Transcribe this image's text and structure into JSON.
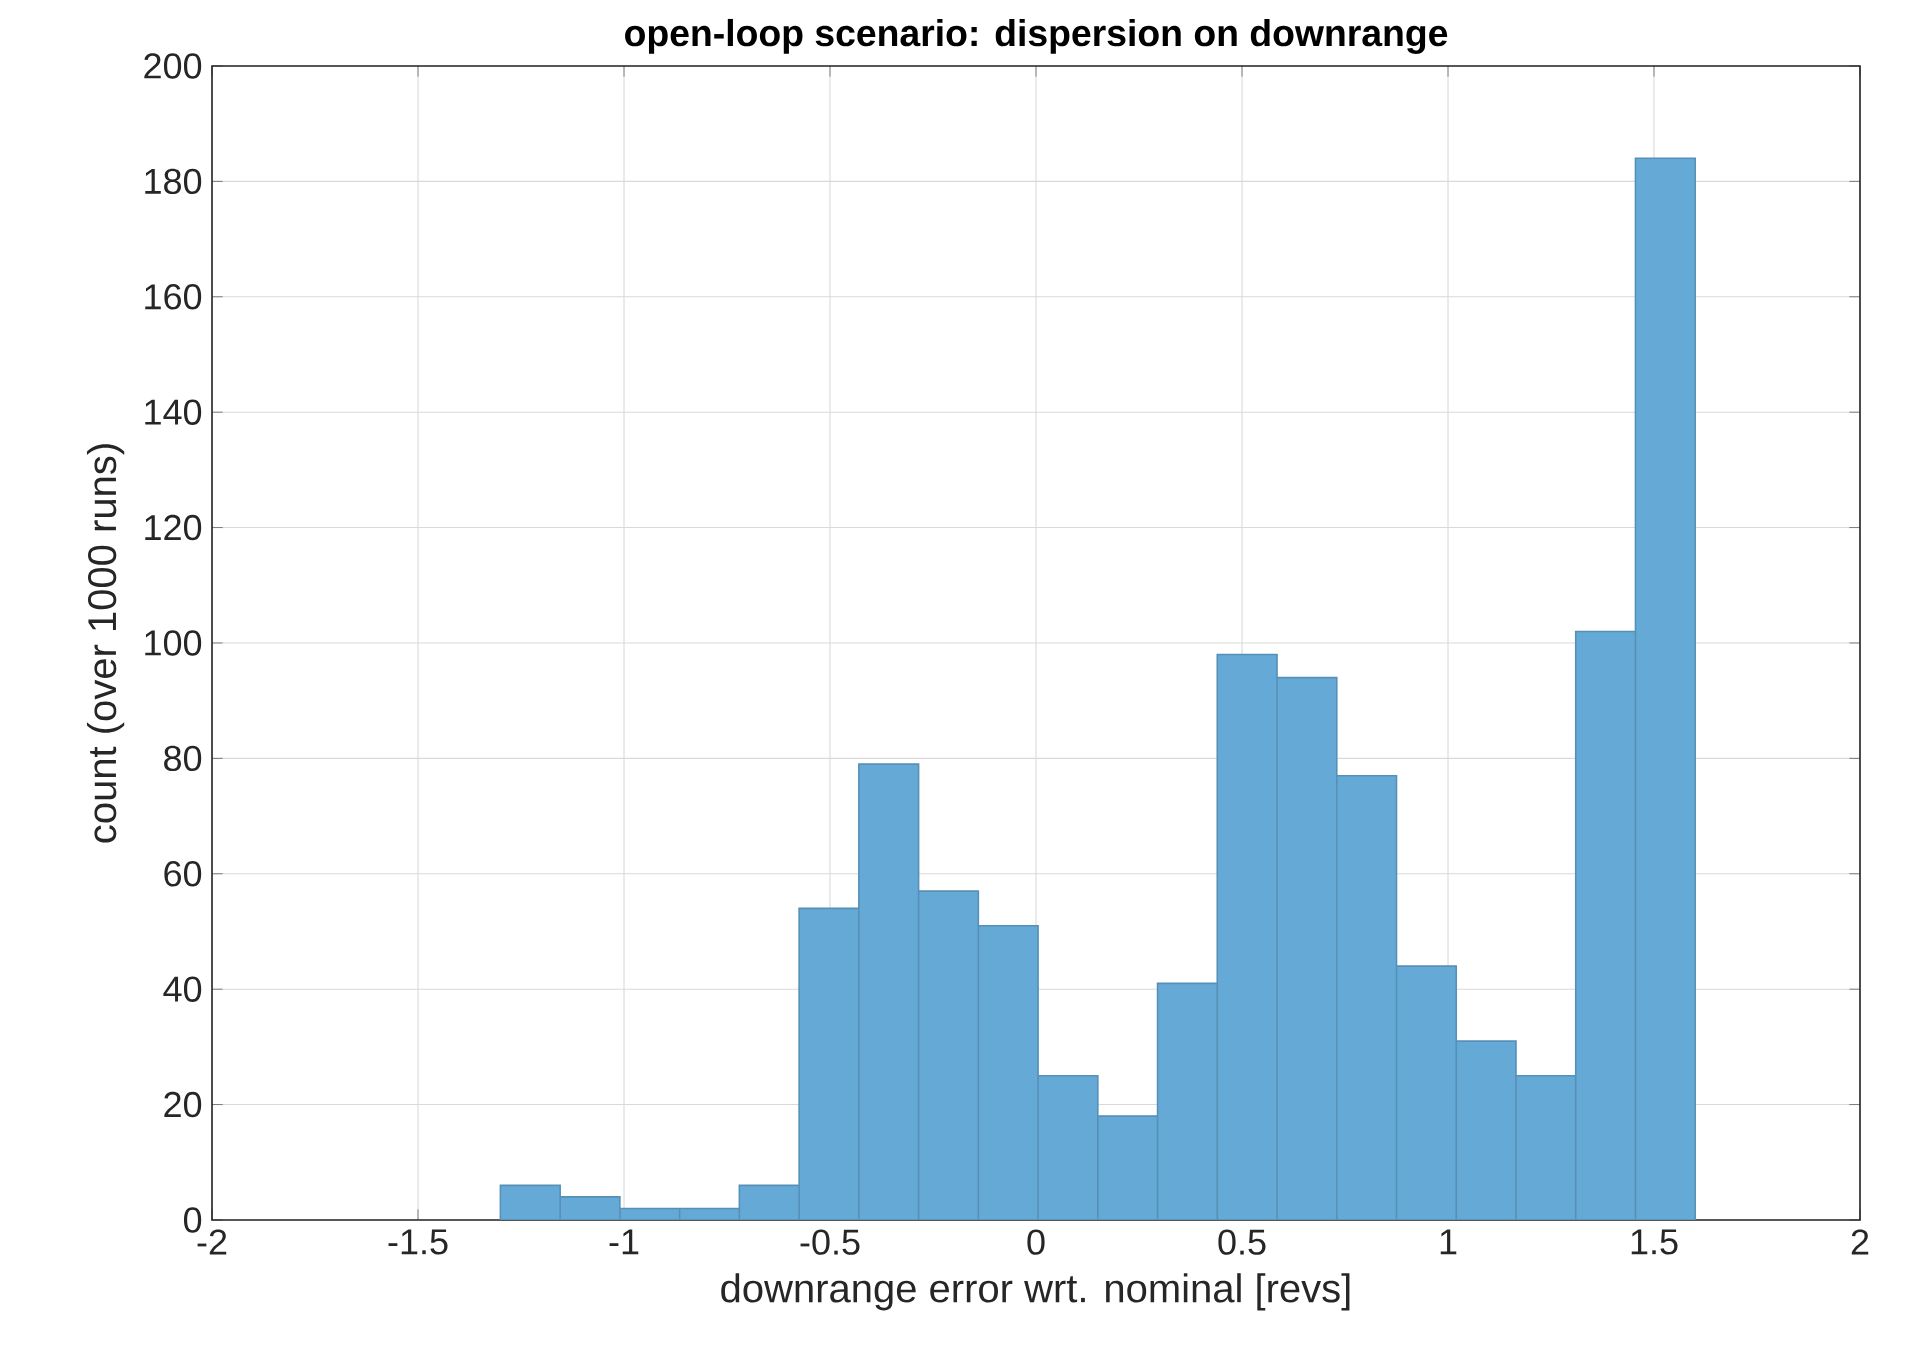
{
  "chart_data": {
    "type": "histogram",
    "title": "open-loop scenario: dispersion on downrange",
    "xlabel": "downrange error wrt. nominal [revs]",
    "ylabel": "count (over 1000 runs)",
    "bins": [
      -1.3,
      -1.155,
      -1.01,
      -0.865,
      -0.72,
      -0.575,
      -0.43,
      -0.285,
      -0.14,
      0.005,
      0.15,
      0.295,
      0.44,
      0.585,
      0.73,
      0.875,
      1.02,
      1.165,
      1.31,
      1.455,
      1.6
    ],
    "values": [
      6,
      4,
      2,
      2,
      6,
      54,
      79,
      57,
      51,
      25,
      18,
      41,
      98,
      94,
      77,
      44,
      31,
      25,
      102,
      184
    ],
    "color": "#65aad7",
    "xlim": [
      -2,
      2
    ],
    "ylim": [
      0,
      200
    ],
    "xticks": [
      -2,
      -1.5,
      -1,
      -0.5,
      0,
      0.5,
      1,
      1.5,
      2
    ],
    "yticks": [
      0,
      20,
      40,
      60,
      80,
      100,
      120,
      140,
      160,
      180,
      200
    ],
    "grid": true
  }
}
